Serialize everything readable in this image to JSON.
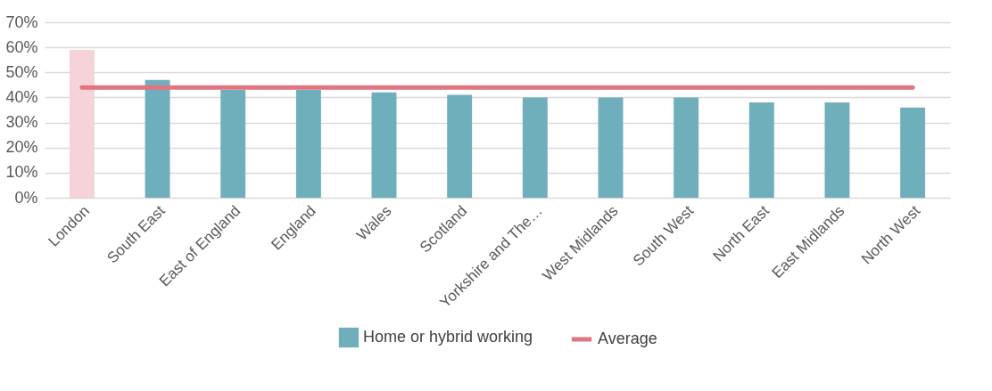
{
  "chart_data": {
    "type": "bar",
    "categories": [
      "London",
      "South East",
      "East of England",
      "England",
      "Wales",
      "Scotland",
      "Yorkshire and The…",
      "West Midlands",
      "South West",
      "North East",
      "East Midlands",
      "North West"
    ],
    "series": [
      {
        "name": "Home or hybrid working",
        "color": "#6eafbb",
        "colors": [
          "#f5d3d8",
          "#6eafbb",
          "#6eafbb",
          "#6eafbb",
          "#6eafbb",
          "#6eafbb",
          "#6eafbb",
          "#6eafbb",
          "#6eafbb",
          "#6eafbb",
          "#6eafbb",
          "#6eafbb"
        ],
        "values": [
          59,
          47,
          43,
          43,
          42,
          41,
          40,
          40,
          40,
          38,
          38,
          36
        ]
      },
      {
        "name": "Average",
        "type": "line",
        "color": "#e07480",
        "values": [
          44,
          44,
          44,
          44,
          44,
          44,
          44,
          44,
          44,
          44,
          44,
          44
        ]
      }
    ],
    "ylim": [
      0,
      70
    ],
    "yticks": [
      {
        "value": 0,
        "label": "0%"
      },
      {
        "value": 10,
        "label": "10%"
      },
      {
        "value": 20,
        "label": "20%"
      },
      {
        "value": 30,
        "label": "30%"
      },
      {
        "value": 40,
        "label": "40%"
      },
      {
        "value": 50,
        "label": "50%"
      },
      {
        "value": 60,
        "label": "60%"
      },
      {
        "value": 70,
        "label": "70%"
      }
    ],
    "grid": true,
    "legend": "bottom"
  }
}
